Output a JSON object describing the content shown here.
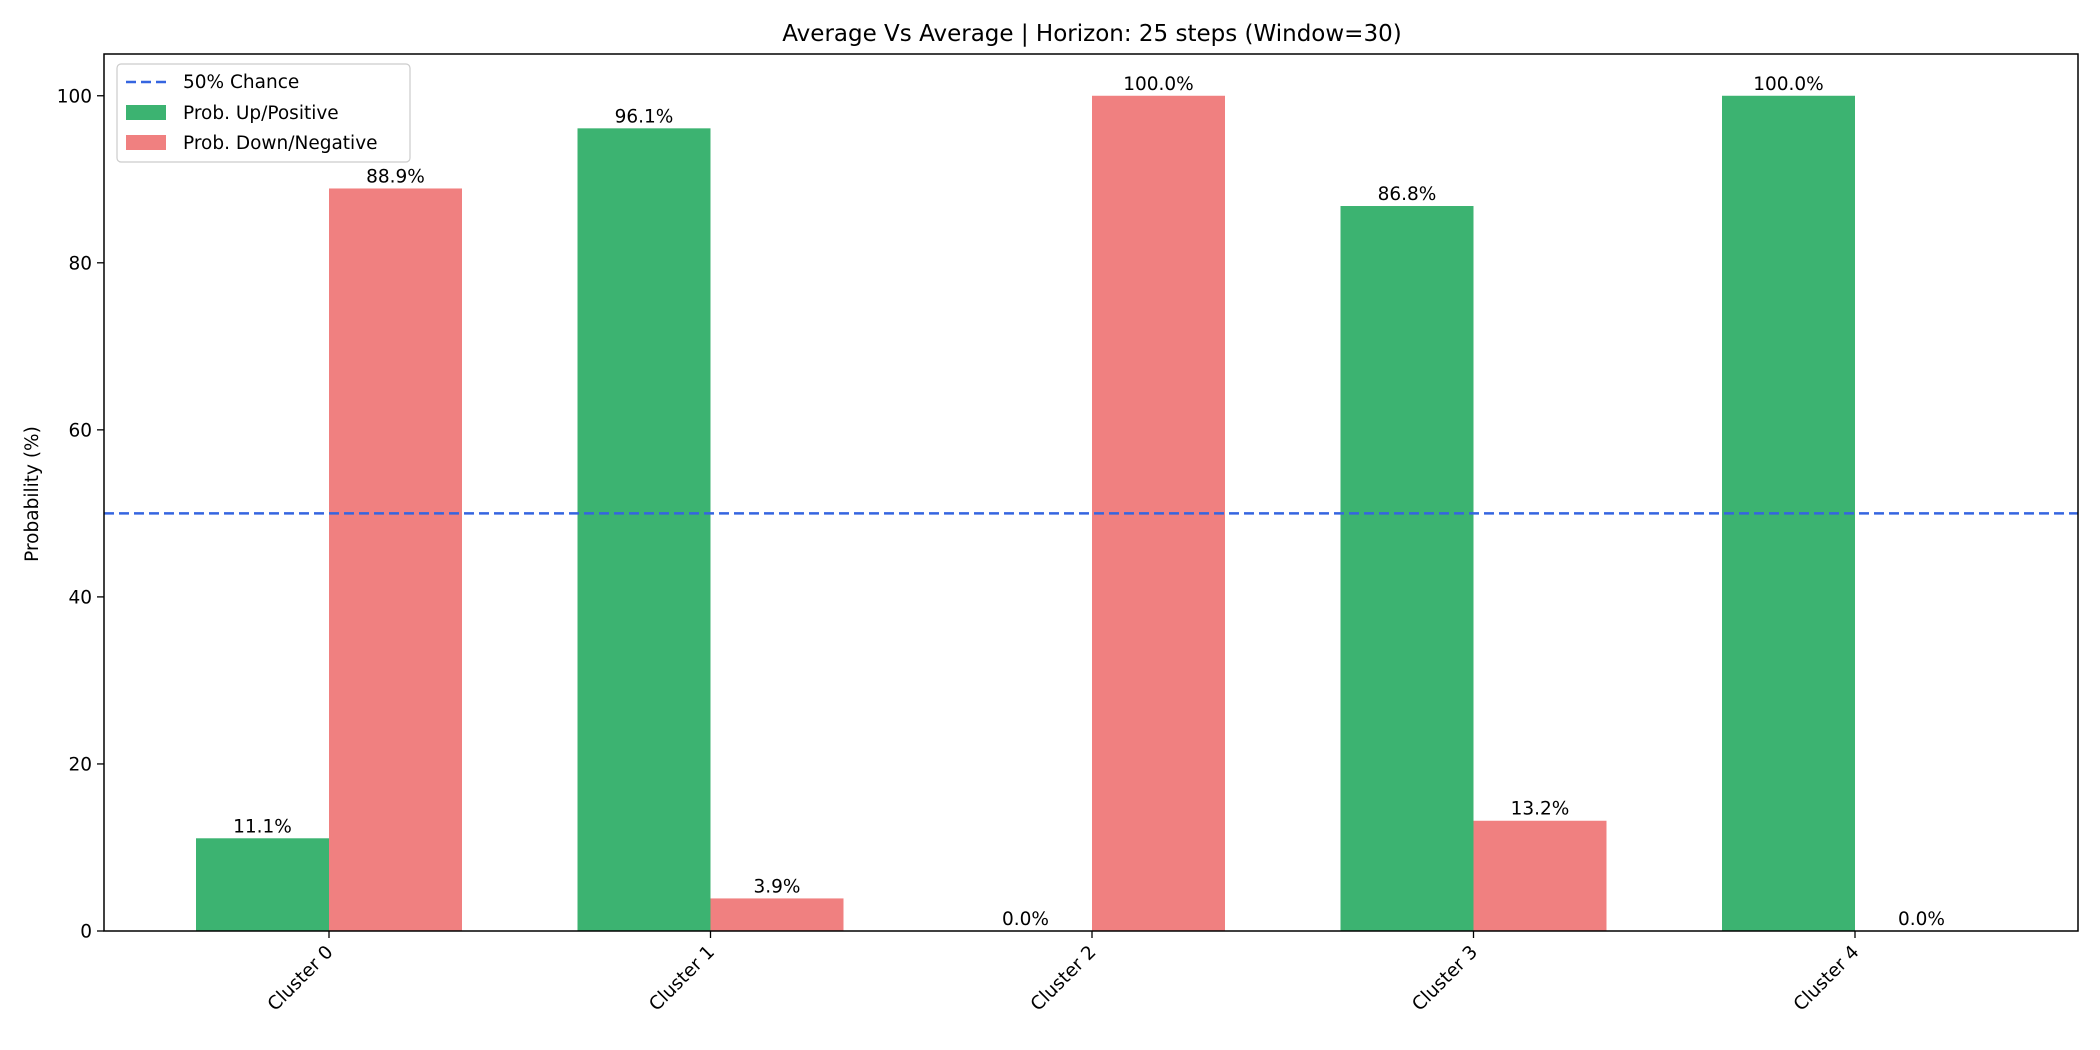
{
  "chart_data": {
    "type": "bar",
    "title": "Average Vs Average | Horizon: 25 steps (Window=30)",
    "xlabel": "",
    "ylabel": "Probability (%)",
    "ylim": [
      0,
      105
    ],
    "yticks": [
      0,
      20,
      40,
      60,
      80,
      100
    ],
    "categories": [
      "Cluster 0",
      "Cluster 1",
      "Cluster 2",
      "Cluster 3",
      "Cluster 4"
    ],
    "series": [
      {
        "name": "Prob. Up/Positive",
        "color": "#3cb371",
        "values": [
          11.1,
          96.1,
          0.0,
          86.8,
          100.0
        ],
        "labels": [
          "11.1%",
          "96.1%",
          "0.0%",
          "86.8%",
          "100.0%"
        ]
      },
      {
        "name": "Prob. Down/Negative",
        "color": "#f08080",
        "values": [
          88.9,
          3.9,
          100.0,
          13.2,
          0.0
        ],
        "labels": [
          "88.9%",
          "3.9%",
          "100.0%",
          "13.2%",
          "0.0%"
        ]
      }
    ],
    "reference_line": {
      "name": "50% Chance",
      "value": 50,
      "color": "#3565e0",
      "style": "dashed"
    },
    "legend": {
      "placement": "upper-left"
    },
    "grid": false
  }
}
